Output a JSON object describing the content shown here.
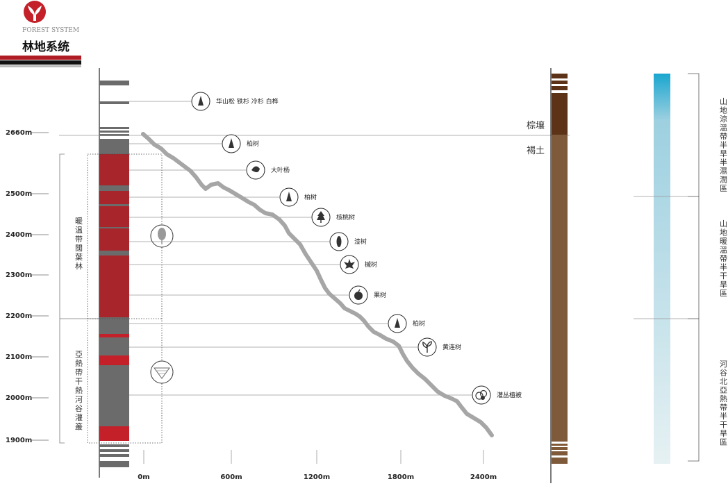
{
  "brand": {
    "subtitle": "FOREST SYSTEM",
    "title": "林地系统",
    "logo_color": "#c4202a"
  },
  "elevation_axis": {
    "labels": [
      "2660m",
      "2500m",
      "2400m",
      "2300m",
      "2200m",
      "2100m",
      "2000m",
      "1900m"
    ]
  },
  "distance_axis": {
    "labels": [
      "0m",
      "600m",
      "1200m",
      "1800m",
      "2400m"
    ]
  },
  "zones": [
    {
      "label": "暖温带闊葉林"
    },
    {
      "label": "亞熱帶干熱河谷灌叢"
    }
  ],
  "trees": [
    {
      "label": "华山松  铁杉  冷杉  白桦",
      "icon": "conifer-icon"
    },
    {
      "label": "柏树",
      "icon": "cypress-icon"
    },
    {
      "label": "大叶杨",
      "icon": "poplar-leaf-icon"
    },
    {
      "label": "柏树",
      "icon": "cypress-icon"
    },
    {
      "label": "核桃树",
      "icon": "walnut-tree-icon"
    },
    {
      "label": "漆树",
      "icon": "lacquer-leaf-icon"
    },
    {
      "label": "槭树",
      "icon": "maple-leaf-icon"
    },
    {
      "label": "果树",
      "icon": "fruit-icon"
    },
    {
      "label": "柏树",
      "icon": "cypress-icon"
    },
    {
      "label": "黄连树",
      "icon": "sprout-icon"
    },
    {
      "label": "灌丛植被",
      "icon": "shrub-icon"
    }
  ],
  "soils": [
    {
      "label": "棕壤",
      "color": "#5c3317"
    },
    {
      "label": "褐土",
      "color": "#7f5a3a"
    }
  ],
  "climate_zones": [
    {
      "label": "山地涼溫帶半旱半濕潤區"
    },
    {
      "label": "山地暖溫帶半干旱區"
    },
    {
      "label": "河谷北亞熱帶半干旱區"
    }
  ],
  "colors": {
    "strata_gray": "#6b6b6b",
    "strata_red": "#a8262b",
    "strata_bright_red": "#c4202a",
    "profile_line": "#a6a6a6",
    "gradient_top": "#1aa6cf",
    "gradient_bottom": "#e6f1f3"
  }
}
